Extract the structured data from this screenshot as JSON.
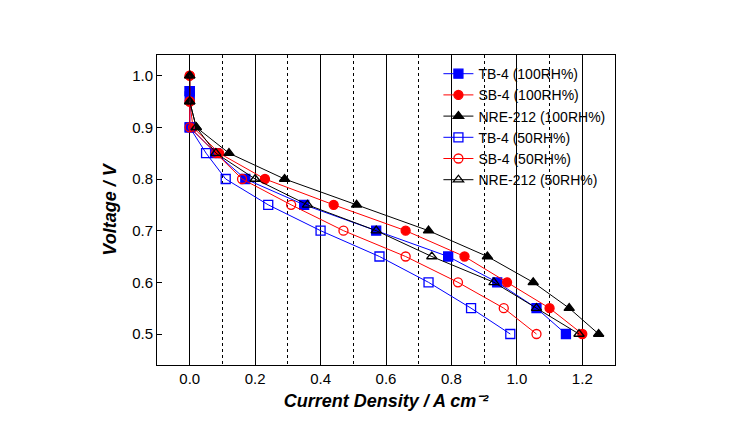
{
  "chart_data": {
    "type": "line",
    "x_label": "Current Density / A cm⁻²",
    "y_label": "Voltage / V",
    "xlim": [
      -0.1,
      1.3
    ],
    "ylim": [
      0.44,
      1.04
    ],
    "xticks": [
      {
        "value": 0,
        "label": "0.0"
      },
      0.2,
      0.4,
      0.6,
      0.8,
      {
        "value": 1,
        "label": "1.0"
      },
      1.2
    ],
    "yticks": [
      0.5,
      0.6,
      0.7,
      0.8,
      0.9,
      {
        "value": 1,
        "label": "1.0"
      }
    ],
    "grid": true,
    "legend": "top right",
    "series": [
      {
        "name": "TB-4 (100RH%)",
        "color": "#0000ff",
        "marker": "square",
        "line_style": "solid",
        "x": [
          0,
          0,
          0,
          0.08,
          0.17,
          0.35,
          0.57,
          0.79,
          0.94,
          1.06,
          1.15
        ],
        "values": [
          0.97,
          0.96,
          0.9,
          0.85,
          0.8,
          0.75,
          0.7,
          0.65,
          0.6,
          0.55,
          0.5
        ]
      },
      {
        "name": "SB-4 (100RH%)",
        "color": "#ff0000",
        "marker": "circle",
        "line_style": "solid",
        "x": [
          0,
          0,
          0.01,
          0.09,
          0.23,
          0.44,
          0.66,
          0.84,
          0.97,
          1.1,
          1.2
        ],
        "values": [
          1.0,
          0.95,
          0.9,
          0.85,
          0.8,
          0.75,
          0.7,
          0.65,
          0.6,
          0.55,
          0.5
        ]
      },
      {
        "name": "NRE-212 (100RH%)",
        "color": "#000000",
        "marker": "triangle-up",
        "line_style": "solid",
        "x": [
          0,
          0,
          0.02,
          0.12,
          0.29,
          0.51,
          0.73,
          0.91,
          1.05,
          1.16,
          1.25
        ],
        "values": [
          1.0,
          0.95,
          0.9,
          0.85,
          0.8,
          0.75,
          0.7,
          0.65,
          0.6,
          0.55,
          0.5
        ]
      },
      {
        "name": "TB-4 (50RH%)",
        "color": "#0000ff",
        "marker": "square-open",
        "line_style": "solid",
        "x": [
          0,
          0,
          0.05,
          0.11,
          0.24,
          0.4,
          0.58,
          0.73,
          0.86,
          0.98
        ],
        "values": [
          0.97,
          0.9,
          0.85,
          0.8,
          0.75,
          0.7,
          0.65,
          0.6,
          0.55,
          0.5
        ]
      },
      {
        "name": "SB-4 (50RH%)",
        "color": "#ff0000",
        "marker": "circle-open",
        "line_style": "solid",
        "x": [
          0,
          0,
          0,
          0.08,
          0.16,
          0.31,
          0.47,
          0.66,
          0.82,
          0.96,
          1.06
        ],
        "values": [
          1.0,
          0.95,
          0.9,
          0.85,
          0.8,
          0.75,
          0.7,
          0.65,
          0.6,
          0.55,
          0.5
        ]
      },
      {
        "name": "NRE-212 (50RH%)",
        "color": "#000000",
        "marker": "triangle-up-open",
        "line_style": "solid",
        "x": [
          0,
          0,
          0.02,
          0.08,
          0.2,
          0.36,
          0.57,
          0.74,
          0.93,
          1.06,
          1.19
        ],
        "values": [
          1.0,
          0.95,
          0.9,
          0.85,
          0.8,
          0.75,
          0.7,
          0.65,
          0.6,
          0.55,
          0.5
        ]
      }
    ]
  }
}
